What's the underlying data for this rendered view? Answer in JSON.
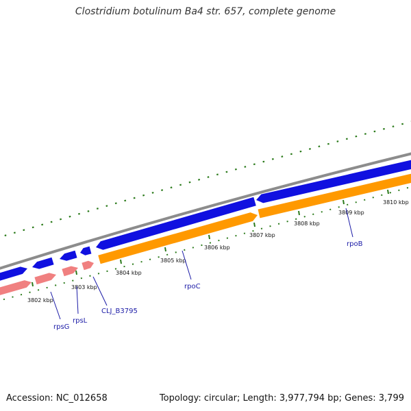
{
  "title": "Clostridium botulinum Ba4 str. 657, complete genome",
  "footer": {
    "accession": "Accession: NC_012658",
    "stats": "Topology: circular; Length: 3,977,794 bp; Genes: 3,799"
  },
  "colors": {
    "backbone": "#8c8c8c",
    "forward_cds": "#1010e0",
    "reverse_cds": "#ff9900",
    "reverse_rna": "#f08080",
    "tick_marks": "#2a7a1a",
    "gene_label": "#1a1aa6",
    "label_line": "#1a1aa6"
  },
  "scale_ticks": [
    {
      "label": "3802 kbp"
    },
    {
      "label": "3803 kbp"
    },
    {
      "label": "3804 kbp"
    },
    {
      "label": "3805 kbp"
    },
    {
      "label": "3806 kbp"
    },
    {
      "label": "3807 kbp"
    },
    {
      "label": "3808 kbp"
    },
    {
      "label": "3809 kbp"
    },
    {
      "label": "3810 kbp"
    }
  ],
  "gene_labels": [
    {
      "name": "rpsG"
    },
    {
      "name": "rpsL"
    },
    {
      "name": "CLJ_B3795"
    },
    {
      "name": "rpoC"
    },
    {
      "name": "rpoB"
    }
  ]
}
